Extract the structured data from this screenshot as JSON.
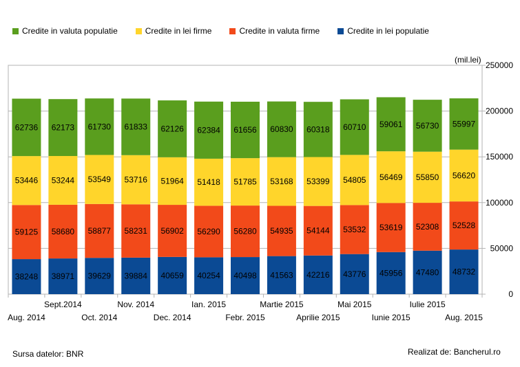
{
  "legend": [
    {
      "label": "Credite in valuta populatie",
      "color": "#5a9e1e"
    },
    {
      "label": "Credite in lei firme",
      "color": "#ffd52b"
    },
    {
      "label": "Credite in valuta firme",
      "color": "#f24a1a"
    },
    {
      "label": "Credite in lei populatie",
      "color": "#0b4a94"
    }
  ],
  "unit_label": "(mil.lei)",
  "footer": {
    "source": "Sursa datelor: BNR",
    "credit": "Realizat de: Bancherul.ro"
  },
  "chart_data": {
    "type": "bar",
    "stacked": true,
    "categories": [
      "Aug. 2014",
      "Sept.2014",
      "Oct. 2014",
      "Nov. 2014",
      "Dec. 2014",
      "Ian. 2015",
      "Febr. 2015",
      "Martie 2015",
      "Aprilie 2015",
      "Mai 2015",
      "Iunie 2015",
      "Iulie 2015",
      "Aug. 2015"
    ],
    "series": [
      {
        "name": "Credite in lei populatie",
        "color": "#0b4a94",
        "values": [
          38248,
          38971,
          39629,
          39884,
          40659,
          40254,
          40498,
          41563,
          42216,
          43776,
          45956,
          47480,
          48732
        ]
      },
      {
        "name": "Credite in valuta firme",
        "color": "#f24a1a",
        "values": [
          59125,
          58680,
          58877,
          58231,
          56902,
          56290,
          56280,
          54935,
          54144,
          53532,
          53619,
          52308,
          52528
        ]
      },
      {
        "name": "Credite in lei firme",
        "color": "#ffd52b",
        "values": [
          53446,
          53244,
          53549,
          53716,
          51964,
          51418,
          51785,
          53168,
          53399,
          54805,
          56469,
          55850,
          56620
        ]
      },
      {
        "name": "Credite in valuta populatie",
        "color": "#5a9e1e",
        "values": [
          62736,
          62173,
          61730,
          61833,
          62126,
          62384,
          61656,
          60830,
          60318,
          60710,
          59061,
          56730,
          55997
        ]
      }
    ],
    "ylim": [
      0,
      250000
    ],
    "yticks": [
      0,
      50000,
      100000,
      150000,
      200000,
      250000
    ],
    "y_axis_side": "right",
    "grid": true,
    "legend_position": "top"
  }
}
